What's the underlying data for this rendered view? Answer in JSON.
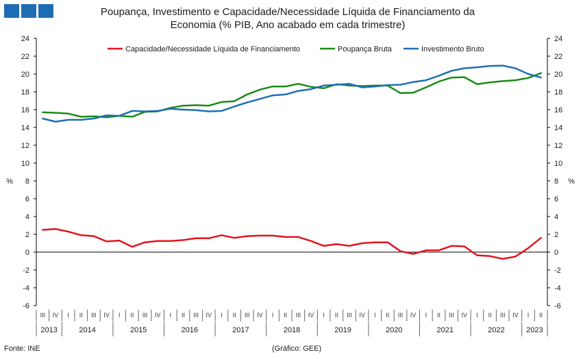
{
  "header": {
    "logo_colors": [
      "#1e6db4",
      "#1e6db4",
      "#1e6db4"
    ],
    "title_line1": "Poupança, Investimento e Capacidade/Necessidade Líquida de Financiamento da",
    "title_line2": "Economia (% PIB, Ano acabado em cada trimestre)"
  },
  "footer": {
    "source": "Fonte: INE",
    "credit": "(Gráfico: GEE)"
  },
  "chart_data": {
    "type": "line",
    "ylabel_left": "%",
    "ylabel_right": "%",
    "ylim": [
      -6,
      24
    ],
    "yticks": [
      -6,
      -4,
      -2,
      0,
      2,
      4,
      6,
      8,
      10,
      12,
      14,
      16,
      18,
      20,
      22,
      24
    ],
    "grid": false,
    "legend_position": "top",
    "quarters": [
      "III",
      "IV",
      "I",
      "II",
      "III",
      "IV",
      "I",
      "II",
      "III",
      "IV",
      "I",
      "II",
      "III",
      "IV",
      "I",
      "II",
      "III",
      "IV",
      "I",
      "II",
      "III",
      "IV",
      "I",
      "II",
      "III",
      "IV",
      "I",
      "II",
      "III",
      "IV",
      "I",
      "II",
      "III",
      "IV",
      "I",
      "II",
      "III",
      "IV",
      "I",
      "II"
    ],
    "years": [
      {
        "label": "2013",
        "count": 2
      },
      {
        "label": "2014",
        "count": 4
      },
      {
        "label": "2015",
        "count": 4
      },
      {
        "label": "2016",
        "count": 4
      },
      {
        "label": "2017",
        "count": 4
      },
      {
        "label": "2018",
        "count": 4
      },
      {
        "label": "2019",
        "count": 4
      },
      {
        "label": "2020",
        "count": 4
      },
      {
        "label": "2021",
        "count": 4
      },
      {
        "label": "2022",
        "count": 4
      },
      {
        "label": "2023",
        "count": 2
      }
    ],
    "series": [
      {
        "name": "Capacidade/Necessidade Líquida de Financiamento",
        "color": "#e3131b",
        "values": [
          2.5,
          2.6,
          2.3,
          1.9,
          1.8,
          1.2,
          1.3,
          0.6,
          1.1,
          1.25,
          1.25,
          1.35,
          1.55,
          1.55,
          1.9,
          1.6,
          1.8,
          1.85,
          1.85,
          1.7,
          1.7,
          1.25,
          0.7,
          0.9,
          0.7,
          1.0,
          1.1,
          1.1,
          0.1,
          -0.2,
          0.2,
          0.2,
          0.7,
          0.65,
          -0.35,
          -0.45,
          -0.75,
          -0.5,
          0.45,
          1.6
        ]
      },
      {
        "name": "Poupança Bruta",
        "color": "#1b8a18",
        "values": [
          15.7,
          15.65,
          15.55,
          15.2,
          15.25,
          15.15,
          15.3,
          15.2,
          15.75,
          15.8,
          16.2,
          16.45,
          16.5,
          16.45,
          16.85,
          16.95,
          17.7,
          18.25,
          18.6,
          18.6,
          18.9,
          18.55,
          18.4,
          18.85,
          18.7,
          18.65,
          18.7,
          18.7,
          17.85,
          17.9,
          18.5,
          19.15,
          19.6,
          19.65,
          18.85,
          19.05,
          19.2,
          19.3,
          19.55,
          20.1
        ]
      },
      {
        "name": "Investimento Bruto",
        "color": "#1c6fb5",
        "values": [
          15.0,
          14.65,
          14.85,
          14.85,
          15.0,
          15.35,
          15.3,
          15.85,
          15.8,
          15.85,
          16.1,
          16.0,
          15.95,
          15.8,
          15.85,
          16.35,
          16.8,
          17.2,
          17.6,
          17.7,
          18.1,
          18.3,
          18.7,
          18.8,
          18.9,
          18.5,
          18.6,
          18.75,
          18.8,
          19.1,
          19.3,
          19.8,
          20.35,
          20.65,
          20.75,
          20.9,
          20.95,
          20.65,
          20.0,
          19.6
        ]
      }
    ]
  }
}
